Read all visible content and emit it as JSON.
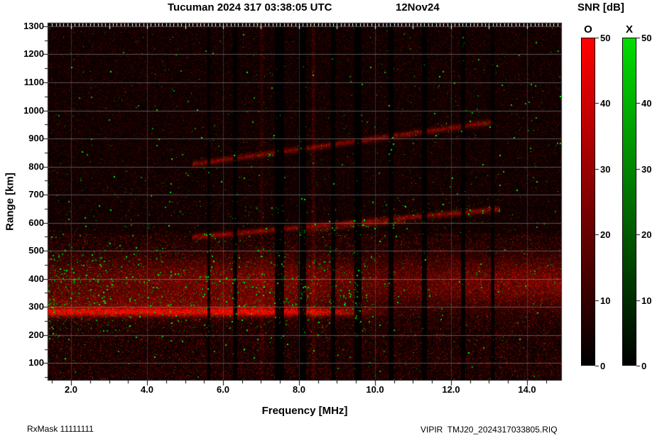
{
  "header": {
    "title": "Tucuman 2024 317 03:38:05 UTC",
    "date": "12Nov24"
  },
  "footer": {
    "left": "RxMask 11111111",
    "right": "VIPIR  TMJ20_2024317033805.RIQ"
  },
  "colorbar": {
    "title": "SNR [dB]",
    "o_label": "O",
    "x_label": "X",
    "ticks": [
      0,
      10,
      20,
      30,
      40,
      50
    ],
    "max": 50,
    "o_color": "#ff0000",
    "x_color": "#00dd00",
    "base_color": "#000000"
  },
  "chart_data": {
    "type": "heatmap",
    "title": "Tucuman 2024 317 03:38:05 UTC 12Nov24",
    "xlabel": "Frequency [MHz]",
    "ylabel": "Range [km]",
    "xlim": [
      1.4,
      14.9
    ],
    "ylim": [
      40,
      1310
    ],
    "xticks": [
      2.0,
      4.0,
      6.0,
      8.0,
      10.0,
      12.0,
      14.0
    ],
    "xtick_labels": [
      "2.0",
      "4.0",
      "6.0",
      "8.0",
      "10.0",
      "12.0",
      "14.0"
    ],
    "yticks": [
      100,
      200,
      300,
      400,
      500,
      600,
      700,
      800,
      900,
      1000,
      1100,
      1200,
      1300
    ],
    "seed": 1234567,
    "layers": {
      "base": 0.035,
      "speckle": 0.22,
      "salt": 0.55,
      "gain": 295,
      "noise_region_limit": 560,
      "noise_region_factor": 0.55,
      "rfi_dark_factor": 0.1,
      "grid": {
        "color": "#969696",
        "h_alpha": 0.55,
        "v_alpha": 0.28
      },
      "top_ticks": {
        "start": 1.5,
        "minor_step": 0.1,
        "minor_len": 4,
        "major_len": 8,
        "color": "#ffffff"
      },
      "bands": [
        {
          "y": 282,
          "sigma": 10,
          "amp": 0.95,
          "f0": 1.4,
          "f1": 8.4,
          "taper": 0.9
        },
        {
          "y": 305,
          "sigma": 28,
          "amp": 0.3,
          "f0": 1.4,
          "f1": 6.5,
          "taper": 1.2
        },
        {
          "y": 395,
          "sigma": 55,
          "amp": 0.26,
          "f0": 1.4,
          "f1": 7.0,
          "taper": 1.5
        },
        {
          "y": 385,
          "sigma": 60,
          "amp": 0.48,
          "f0": 6.0,
          "f1": 14.9,
          "taper": 2.5,
          "grow": true
        }
      ],
      "traces": [
        {
          "x0": 5.2,
          "y0": 548,
          "x1": 13.3,
          "y1": 648,
          "sigma": 7,
          "amp": 0.55
        },
        {
          "x0": 5.2,
          "y0": 808,
          "x1": 13.1,
          "y1": 958,
          "sigma": 7,
          "amp": 0.5
        },
        {
          "x0": 8.0,
          "y0": 565,
          "x1": 10.8,
          "y1": 605,
          "sigma": 5,
          "amp": 0.3
        }
      ],
      "rfi_dark": [
        {
          "x": 5.62,
          "w": 0.04
        },
        {
          "x": 6.32,
          "w": 0.05
        },
        {
          "x": 7.48,
          "w": 0.12
        },
        {
          "x": 8.08,
          "w": 0.1
        },
        {
          "x": 8.9,
          "w": 0.05
        },
        {
          "x": 9.55,
          "w": 0.1
        },
        {
          "x": 10.42,
          "w": 0.06
        },
        {
          "x": 11.3,
          "w": 0.07
        },
        {
          "x": 12.32,
          "w": 0.06
        },
        {
          "x": 13.1,
          "w": 0.05
        }
      ],
      "rfi_bright": [
        {
          "x": 8.38,
          "w": 0.05,
          "amp": 0.18
        },
        {
          "x": 7.02,
          "w": 0.04,
          "amp": 0.12
        }
      ],
      "green": {
        "sparse": 800,
        "lower": 1250,
        "lower_fmax": 10.0,
        "lower_y": 360,
        "lower_sigma": 85,
        "lower_pow": 1.3,
        "trace": 130,
        "value_min": 110,
        "value_range": 145,
        "clusters": [
          {
            "x": 11.3,
            "y": 650,
            "sx": 0.9,
            "sy": 45,
            "n": 45
          },
          {
            "x": 7.3,
            "y": 620,
            "sx": 0.8,
            "sy": 40,
            "n": 30
          },
          {
            "x": 3.0,
            "y": 640,
            "sx": 1.2,
            "sy": 60,
            "n": 35
          },
          {
            "x": 13.0,
            "y": 390,
            "sx": 1.5,
            "sy": 50,
            "n": 60
          },
          {
            "x": 14.2,
            "y": 420,
            "sx": 0.6,
            "sy": 40,
            "n": 25
          }
        ]
      }
    }
  }
}
